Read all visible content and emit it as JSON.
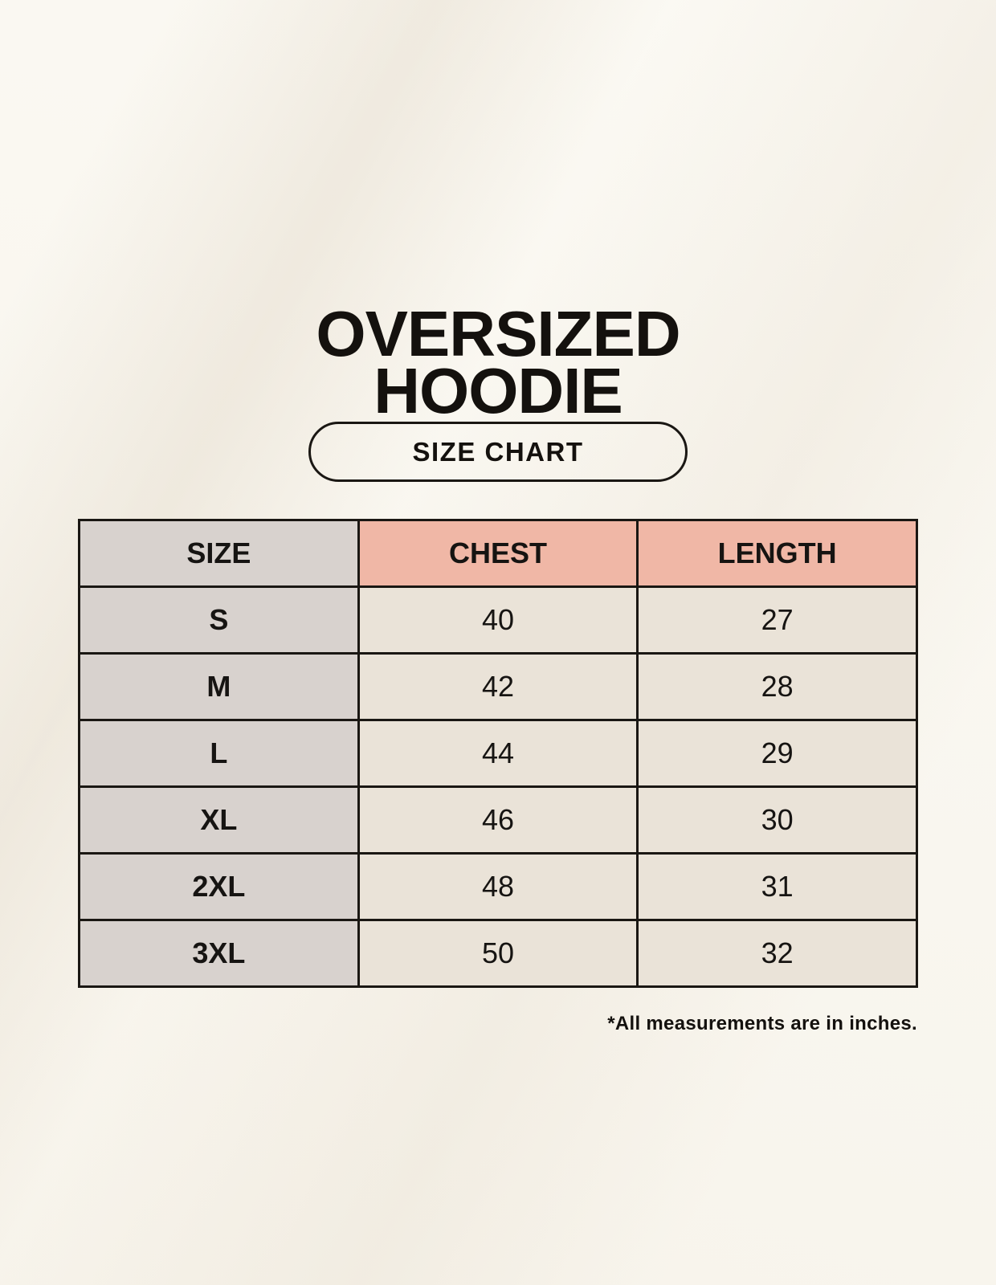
{
  "header": {
    "title_line1": "OVERSIZED",
    "title_line2": "HOODIE",
    "badge_label": "SIZE CHART"
  },
  "size_table": {
    "headers": [
      "SIZE",
      "CHEST",
      "LENGTH"
    ],
    "rows": [
      {
        "size": "S",
        "chest": "40",
        "length": "27"
      },
      {
        "size": "M",
        "chest": "42",
        "length": "28"
      },
      {
        "size": "L",
        "chest": "44",
        "length": "29"
      },
      {
        "size": "XL",
        "chest": "46",
        "length": "30"
      },
      {
        "size": "2XL",
        "chest": "48",
        "length": "31"
      },
      {
        "size": "3XL",
        "chest": "50",
        "length": "32"
      }
    ]
  },
  "footer": {
    "note": "*All measurements are in inches."
  },
  "colors": {
    "background": "#f8f5ed",
    "ink": "#161412",
    "size_column_bg": "#d8d2ce",
    "measure_header_bg": "#f0b7a6",
    "value_cell_bg": "#eae3d8",
    "table_border": "#1a1713"
  },
  "chart_data": {
    "type": "table",
    "title": "OVERSIZED HOODIE",
    "subtitle": "SIZE CHART",
    "columns": [
      "SIZE",
      "CHEST",
      "LENGTH"
    ],
    "units": "inches",
    "rows": [
      [
        "S",
        40,
        27
      ],
      [
        "M",
        42,
        28
      ],
      [
        "L",
        44,
        29
      ],
      [
        "XL",
        46,
        30
      ],
      [
        "2XL",
        48,
        31
      ],
      [
        "3XL",
        50,
        32
      ]
    ],
    "note": "*All measurements are in inches."
  }
}
